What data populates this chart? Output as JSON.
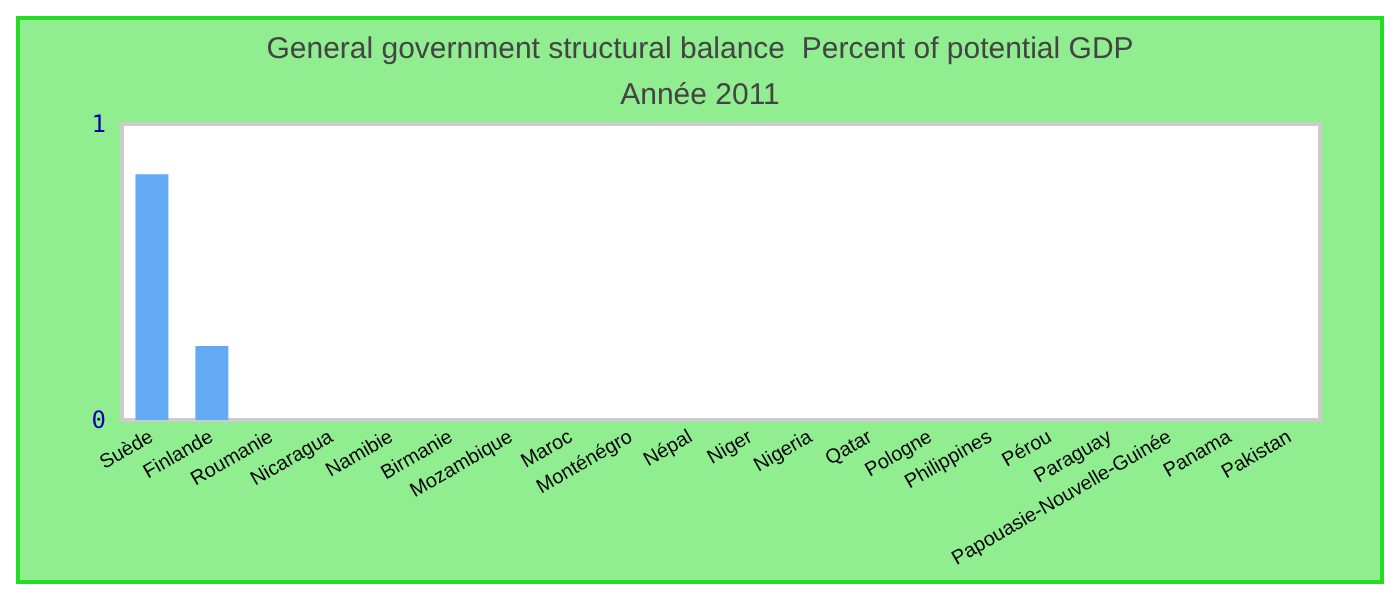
{
  "chart_data": {
    "type": "bar",
    "title": "General government structural balance  Percent of potential GDP",
    "subtitle": "Année 2011",
    "categories": [
      "Suède",
      "Finlande",
      "Roumanie",
      "Nicaragua",
      "Namibie",
      "Birmanie",
      "Mozambique",
      "Maroc",
      "Monténégro",
      "Népal",
      "Niger",
      "Nigeria",
      "Qatar",
      "Pologne",
      "Philippines",
      "Pérou",
      "Paraguay",
      "Papouasie-Nouvelle-Guinée",
      "Panama",
      "Pakistan"
    ],
    "values": [
      0.83,
      0.25,
      0,
      0,
      0,
      0,
      0,
      0,
      0,
      0,
      0,
      0,
      0,
      0,
      0,
      0,
      0,
      0,
      0,
      0
    ],
    "color": "#63aaf5",
    "ylim": [
      0,
      1
    ],
    "yticks": [
      0,
      1
    ],
    "grid": false
  }
}
